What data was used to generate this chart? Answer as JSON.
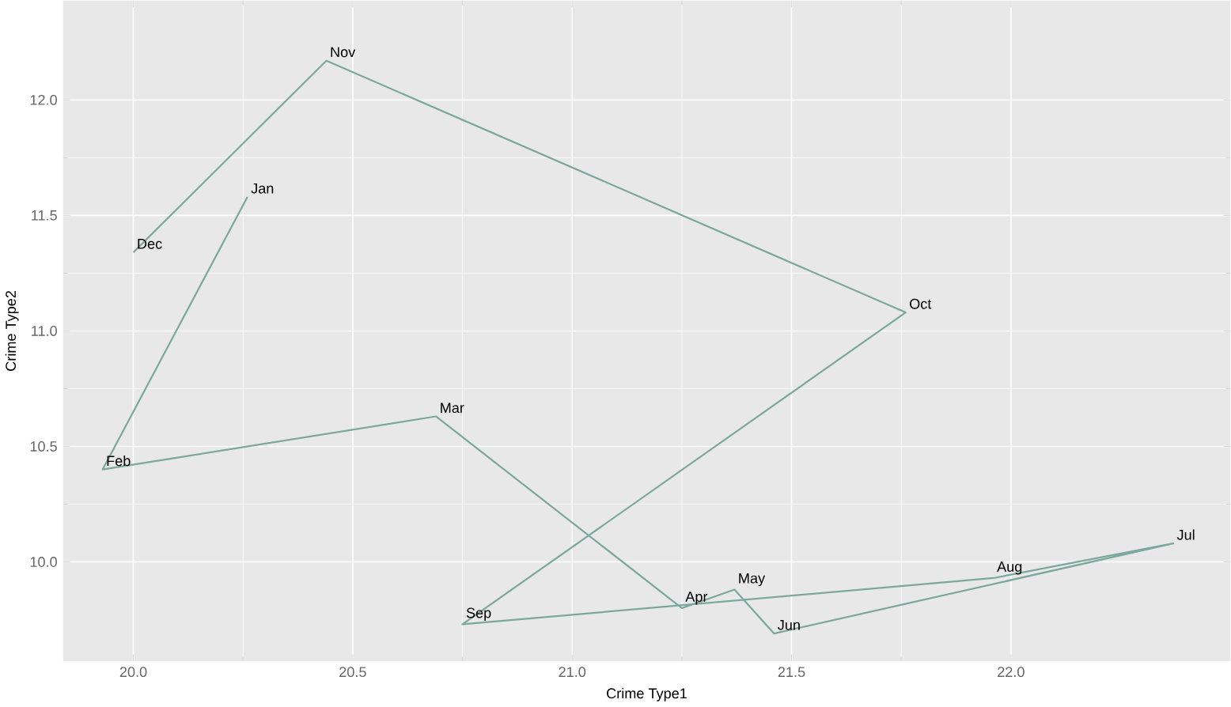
{
  "chart_data": {
    "type": "line",
    "xlabel": "Crime Type1",
    "ylabel": "Crime Type2",
    "x": [
      20.26,
      19.93,
      20.69,
      21.25,
      21.37,
      21.46,
      22.37,
      21.96,
      20.75,
      21.76,
      20.44,
      20.0
    ],
    "series": [
      {
        "color": "#7aa89a",
        "values": [
          11.58,
          10.4,
          10.63,
          9.8,
          9.88,
          9.69,
          10.08,
          9.93,
          9.73,
          11.08,
          12.17,
          11.34
        ]
      }
    ],
    "annotations": [
      {
        "text": "Jan",
        "x": 20.26,
        "y": 11.58
      },
      {
        "text": "Feb",
        "x": 19.93,
        "y": 10.4
      },
      {
        "text": "Mar",
        "x": 20.69,
        "y": 10.63
      },
      {
        "text": "Apr",
        "x": 21.25,
        "y": 9.8
      },
      {
        "text": "May",
        "x": 21.37,
        "y": 9.88
      },
      {
        "text": "Jun",
        "x": 21.46,
        "y": 9.69
      },
      {
        "text": "Jul",
        "x": 22.37,
        "y": 10.08
      },
      {
        "text": "Aug",
        "x": 21.96,
        "y": 9.93
      },
      {
        "text": "Sep",
        "x": 20.75,
        "y": 9.73
      },
      {
        "text": "Oct",
        "x": 21.76,
        "y": 11.08
      },
      {
        "text": "Nov",
        "x": 20.44,
        "y": 12.17
      },
      {
        "text": "Dec",
        "x": 20.0,
        "y": 11.34
      }
    ],
    "xlim": [
      19.84,
      22.5
    ],
    "ylim": [
      9.57,
      12.43
    ],
    "xticks": [
      {
        "value": 20,
        "label": "20.0"
      },
      20.5,
      {
        "value": 21,
        "label": "21.0"
      },
      21.5,
      {
        "value": 22,
        "label": "22.0"
      }
    ],
    "yticks": [
      {
        "value": 10,
        "label": "10.0"
      },
      10.5,
      {
        "value": 11,
        "label": "11.0"
      },
      11.5,
      {
        "value": 12,
        "label": "12.0"
      }
    ],
    "grid": true,
    "marker": "none",
    "line_style": "solid"
  }
}
